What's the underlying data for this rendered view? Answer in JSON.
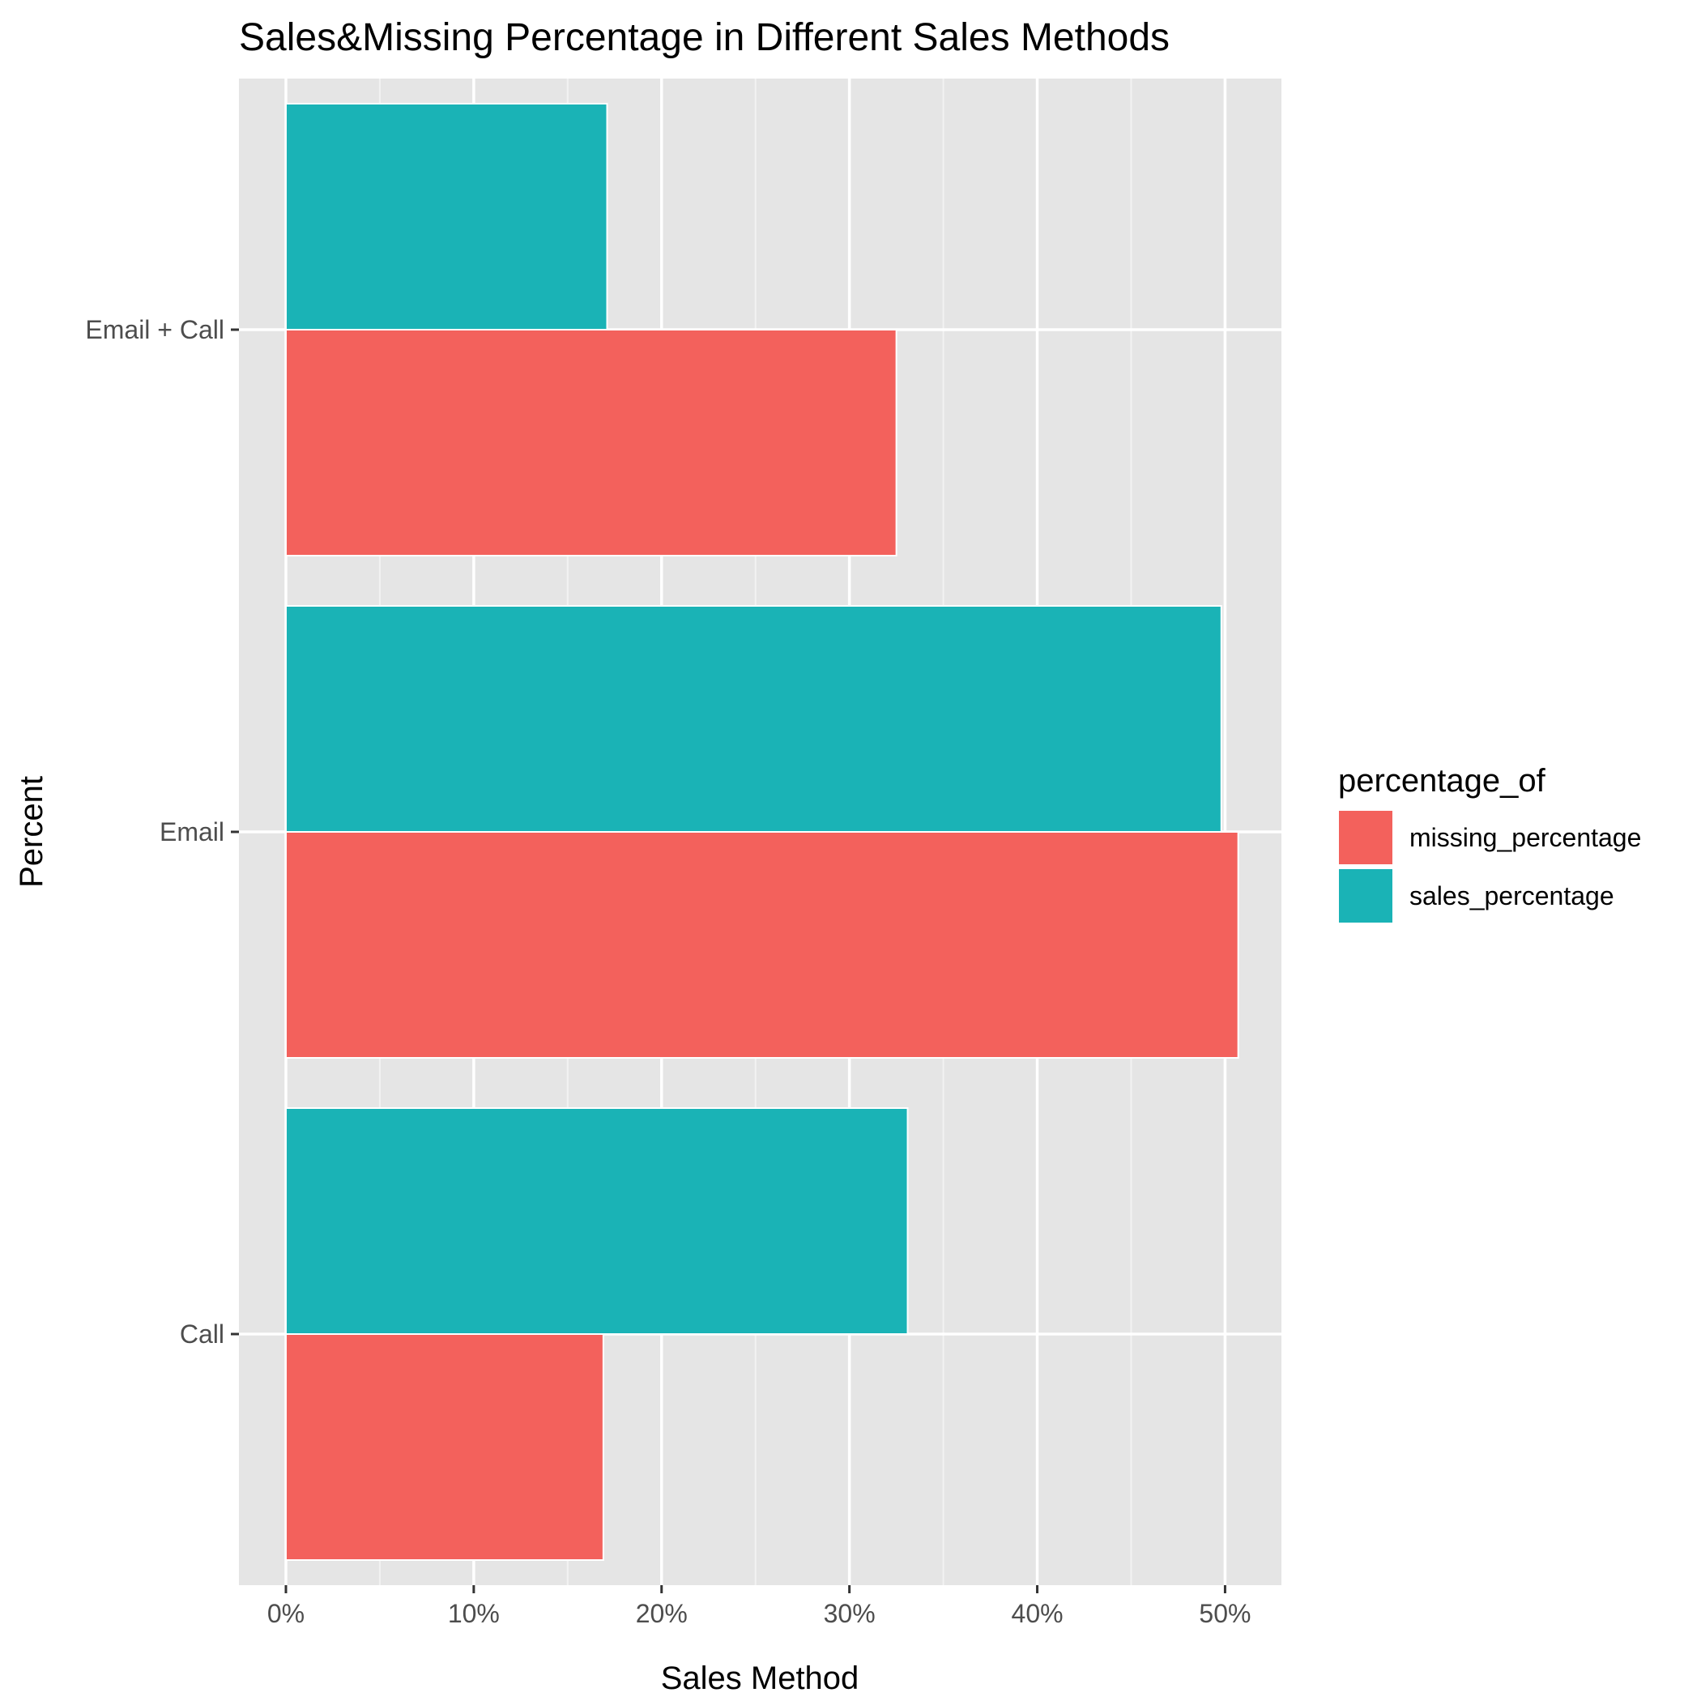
{
  "chart_data": {
    "type": "bar",
    "orientation": "horizontal",
    "title": "Sales&Missing Percentage in Different Sales Methods",
    "xlabel": "Sales Method",
    "ylabel": "Percent",
    "categories": [
      "Call",
      "Email",
      "Email + Call"
    ],
    "x_ticks": [
      "0%",
      "10%",
      "20%",
      "30%",
      "40%",
      "50%"
    ],
    "xlim": [
      -2.5,
      53
    ],
    "grid": true,
    "legend_title": "percentage_of",
    "legend_position": "right",
    "series": [
      {
        "name": "missing_percentage",
        "color": "#F3615C",
        "values": [
          16.9,
          50.7,
          32.5
        ]
      },
      {
        "name": "sales_percentage",
        "color": "#1AB3B6",
        "values": [
          33.1,
          49.8,
          17.1
        ]
      }
    ],
    "panel_background": "#E5E5E5",
    "grid_color": "#FFFFFF"
  }
}
